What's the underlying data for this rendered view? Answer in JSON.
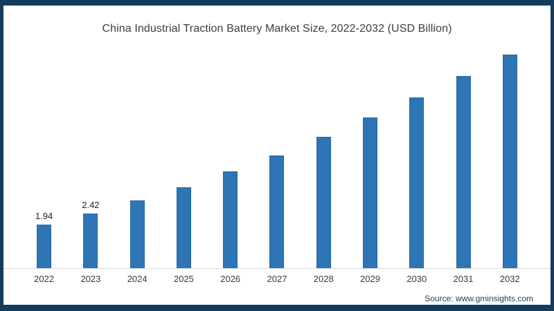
{
  "chart_data": {
    "type": "bar",
    "title": "China Industrial Traction Battery Market Size, 2022-2032 (USD Billion)",
    "categories": [
      "2022",
      "2023",
      "2024",
      "2025",
      "2026",
      "2027",
      "2028",
      "2029",
      "2030",
      "2031",
      "2032"
    ],
    "values": [
      1.94,
      2.42,
      3.0,
      3.6,
      4.3,
      5.0,
      5.85,
      6.7,
      7.6,
      8.55,
      9.5
    ],
    "data_labels": [
      "1.94",
      "2.42",
      "",
      "",
      "",
      "",
      "",
      "",
      "",
      "",
      ""
    ],
    "xlabel": "",
    "ylabel": "",
    "ylim": [
      0,
      10
    ],
    "grid": false,
    "legend": false,
    "bar_color": "#2e75b6",
    "axis_line_color": "#d9d9d9"
  },
  "footer": {
    "source_label": "Source: www.gminsights.com"
  },
  "frame": {
    "border_color": "#133b5b",
    "background": "#ffffff"
  }
}
